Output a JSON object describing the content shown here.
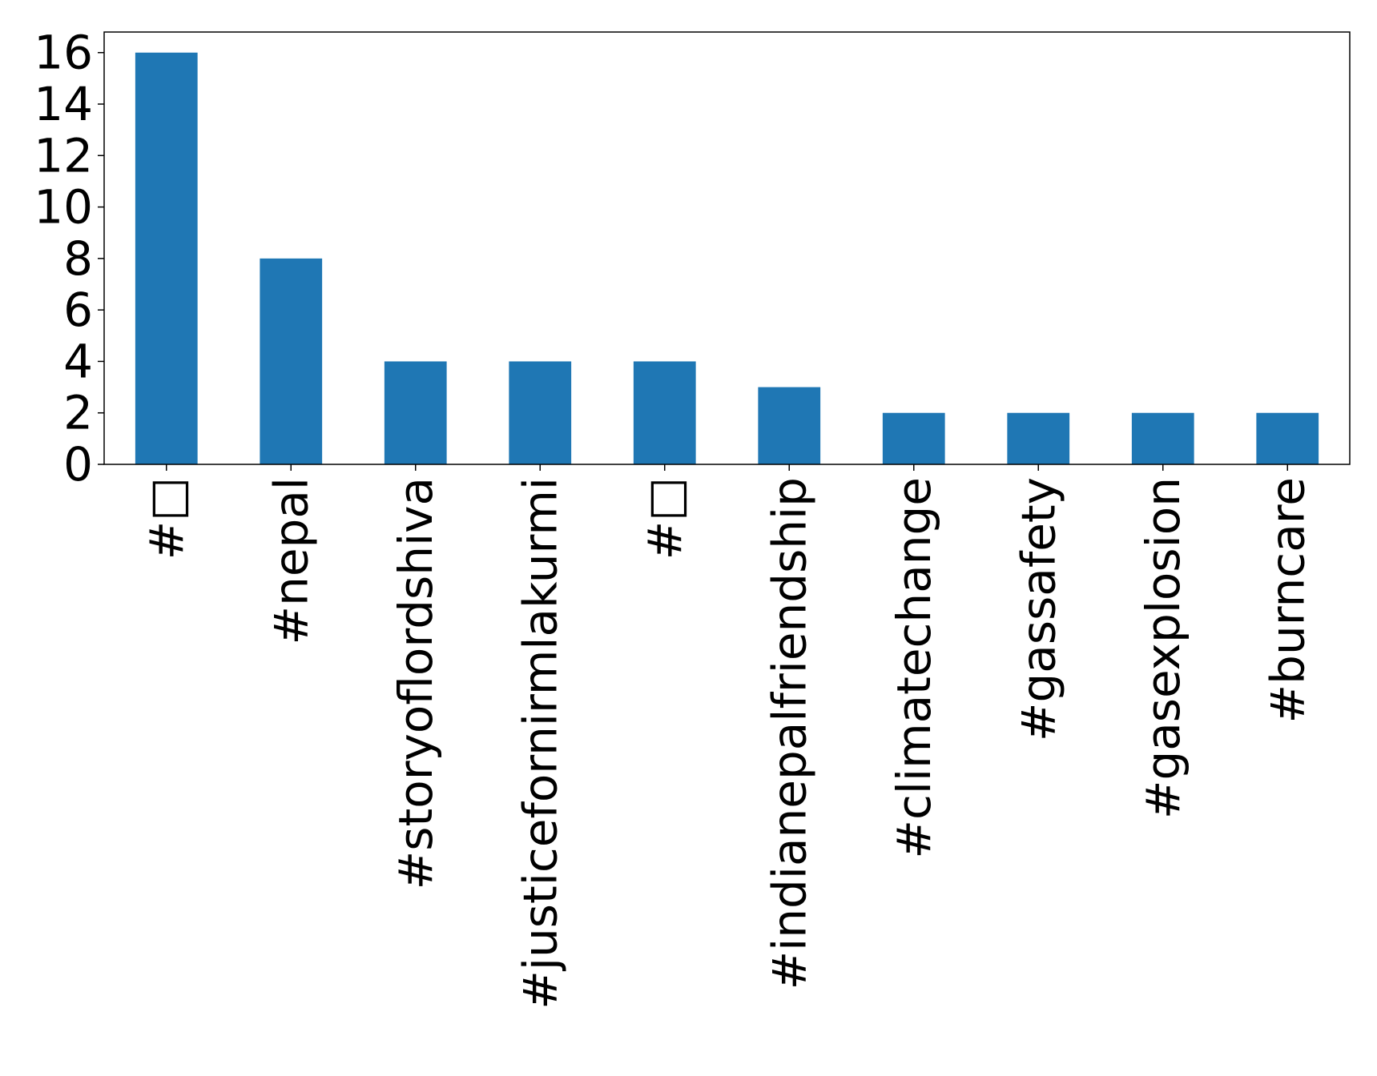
{
  "chart_data": {
    "type": "bar",
    "categories": [
      "#□",
      "#nepal",
      "#storyoflordshiva",
      "#justicefornirmlakurmi",
      "#□",
      "#indianepalfriendship",
      "#climatechange",
      "#gassafety",
      "#gasexplosion",
      "#burncare"
    ],
    "values": [
      16,
      8,
      4,
      4,
      4,
      3,
      2,
      2,
      2,
      2
    ],
    "ylim": [
      0,
      16.8
    ],
    "yticks": [
      0,
      2,
      4,
      6,
      8,
      10,
      12,
      14,
      16
    ],
    "grid": false,
    "legend": "none",
    "bar_color": "#1f77b4"
  }
}
